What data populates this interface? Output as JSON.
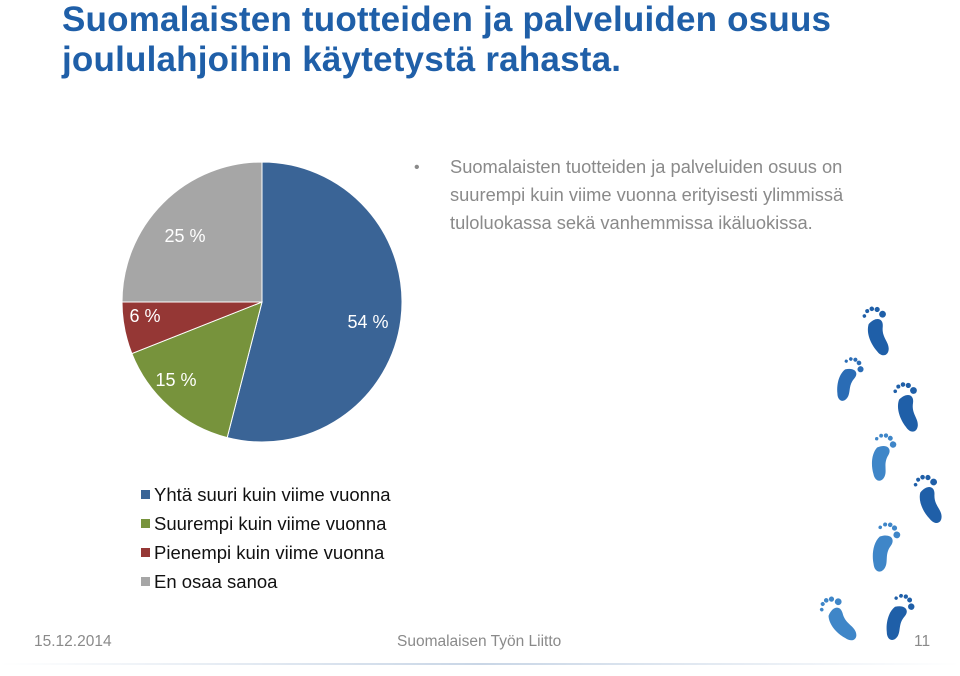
{
  "slide": {
    "title": "Suomalaisten tuotteiden ja palveluiden osuus joululahjoihin käytetystä rahasta.",
    "bullet": "Suomalaisten tuotteiden ja palveluiden osuus on suurempi kuin viime vuonna erityisesti ylimmissä tuloluokassa sekä vanhemmissa ikäluokissa.",
    "footer": {
      "date": "15.12.2014",
      "organization": "Suomalaisen Työn Liitto",
      "page": "11"
    },
    "decoration": "footprints-icon"
  },
  "colors": {
    "title": "#1f5fa8",
    "text_gray": "#8a8a8a"
  },
  "chart_data": {
    "type": "pie",
    "title": "",
    "unit": "%",
    "legend_position": "bottom",
    "slices": [
      {
        "label": "Yhtä suuri kuin viime vuonna",
        "value": 54,
        "value_label": "54 %",
        "color": "#3a6496"
      },
      {
        "label": "Suurempi kuin viime vuonna",
        "value": 15,
        "value_label": "15 %",
        "color": "#77933c"
      },
      {
        "label": "Pienempi kuin viime vuonna",
        "value": 6,
        "value_label": "6 %",
        "color": "#953735"
      },
      {
        "label": "En osaa sanoa",
        "value": 25,
        "value_label": "25 %",
        "color": "#a6a6a6"
      }
    ]
  }
}
